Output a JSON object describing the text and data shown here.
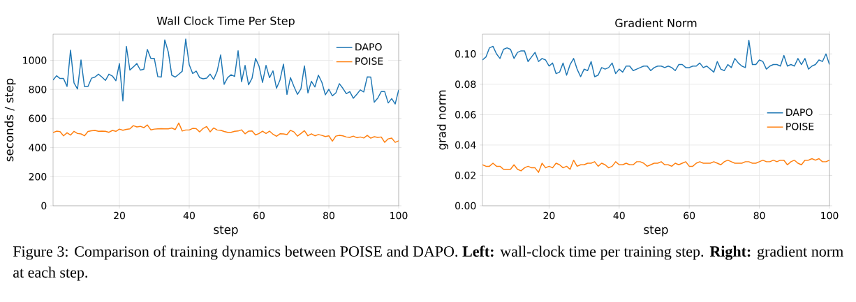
{
  "chart_data": [
    {
      "type": "line",
      "title": "Wall Clock Time Per Step",
      "xlabel": "step",
      "ylabel": "seconds / step",
      "x": [
        1,
        2,
        3,
        4,
        5,
        6,
        7,
        8,
        9,
        10,
        11,
        12,
        13,
        14,
        15,
        16,
        17,
        18,
        19,
        20,
        21,
        22,
        23,
        24,
        25,
        26,
        27,
        28,
        29,
        30,
        31,
        32,
        33,
        34,
        35,
        36,
        37,
        38,
        39,
        40,
        41,
        42,
        43,
        44,
        45,
        46,
        47,
        48,
        49,
        50,
        51,
        52,
        53,
        54,
        55,
        56,
        57,
        58,
        59,
        60,
        61,
        62,
        63,
        64,
        65,
        66,
        67,
        68,
        69,
        70,
        71,
        72,
        73,
        74,
        75,
        76,
        77,
        78,
        79,
        80,
        81,
        82,
        83,
        84,
        85,
        86,
        87,
        88,
        89,
        90,
        91,
        92,
        93,
        94,
        95,
        96,
        97,
        98,
        99,
        100
      ],
      "series": [
        {
          "name": "DAPO",
          "color": "#1f77b4",
          "values": [
            865,
            894,
            875,
            875,
            820,
            1070,
            845,
            803,
            1003,
            820,
            820,
            877,
            885,
            905,
            885,
            862,
            905,
            892,
            860,
            978,
            721,
            1096,
            933,
            955,
            978,
            933,
            939,
            1075,
            1013,
            1013,
            888,
            885,
            1141,
            1058,
            898,
            885,
            904,
            925,
            1146,
            970,
            909,
            926,
            881,
            873,
            878,
            905,
            869,
            925,
            1037,
            835,
            881,
            901,
            889,
            1066,
            853,
            965,
            832,
            877,
            1013,
            960,
            848,
            965,
            881,
            928,
            808,
            865,
            974,
            766,
            881,
            820,
            766,
            804,
            962,
            776,
            856,
            817,
            898,
            849,
            763,
            801,
            756,
            776,
            840,
            808,
            771,
            785,
            739,
            766,
            797,
            783,
            886,
            885,
            712,
            740,
            785,
            785,
            707,
            737,
            700,
            797
          ]
        },
        {
          "name": "POISE",
          "color": "#ff7f0e",
          "values": [
            503,
            513,
            510,
            481,
            502,
            486,
            512,
            497,
            494,
            481,
            511,
            516,
            518,
            512,
            513,
            512,
            505,
            518,
            512,
            527,
            519,
            525,
            529,
            551,
            542,
            546,
            537,
            556,
            522,
            527,
            529,
            530,
            529,
            529,
            535,
            524,
            569,
            514,
            521,
            521,
            532,
            530,
            508,
            532,
            545,
            508,
            535,
            521,
            519,
            511,
            505,
            505,
            512,
            514,
            522,
            495,
            513,
            514,
            487,
            497,
            513,
            497,
            513,
            492,
            478,
            495,
            494,
            489,
            519,
            508,
            479,
            497,
            516,
            481,
            495,
            481,
            490,
            484,
            476,
            481,
            444,
            479,
            484,
            481,
            473,
            470,
            479,
            468,
            473,
            466,
            484,
            465,
            475,
            470,
            473,
            436,
            460,
            465,
            436,
            447
          ]
        }
      ],
      "xlim": [
        1,
        100
      ],
      "xticks": [
        20,
        40,
        60,
        80,
        100
      ],
      "ylim": [
        0,
        1180
      ],
      "yticks": [
        0,
        200,
        400,
        600,
        800,
        1000
      ],
      "grid": true,
      "legend": "top right",
      "marker": "none",
      "annotations": [
        "Figure 3: Comparison of training dynamics between POISE and DAPO. **Left:** wall-clock time per training step. **Right:** gradient norm at each step."
      ]
    },
    {
      "type": "line",
      "title": "Gradient Norm",
      "xlabel": "step",
      "ylabel": "grad norm",
      "x": [
        1,
        2,
        3,
        4,
        5,
        6,
        7,
        8,
        9,
        10,
        11,
        12,
        13,
        14,
        15,
        16,
        17,
        18,
        19,
        20,
        21,
        22,
        23,
        24,
        25,
        26,
        27,
        28,
        29,
        30,
        31,
        32,
        33,
        34,
        35,
        36,
        37,
        38,
        39,
        40,
        41,
        42,
        43,
        44,
        45,
        46,
        47,
        48,
        49,
        50,
        51,
        52,
        53,
        54,
        55,
        56,
        57,
        58,
        59,
        60,
        61,
        62,
        63,
        64,
        65,
        66,
        67,
        68,
        69,
        70,
        71,
        72,
        73,
        74,
        75,
        76,
        77,
        78,
        79,
        80,
        81,
        82,
        83,
        84,
        85,
        86,
        87,
        88,
        89,
        90,
        91,
        92,
        93,
        94,
        95,
        96,
        97,
        98,
        99,
        100
      ],
      "series": [
        {
          "name": "DAPO",
          "color": "#1f77b4",
          "values": [
            0.096,
            0.098,
            0.104,
            0.105,
            0.1,
            0.097,
            0.103,
            0.104,
            0.103,
            0.097,
            0.101,
            0.102,
            0.102,
            0.095,
            0.098,
            0.101,
            0.095,
            0.097,
            0.096,
            0.092,
            0.094,
            0.087,
            0.088,
            0.094,
            0.086,
            0.093,
            0.097,
            0.09,
            0.085,
            0.09,
            0.089,
            0.095,
            0.085,
            0.086,
            0.091,
            0.09,
            0.091,
            0.094,
            0.087,
            0.09,
            0.088,
            0.092,
            0.092,
            0.089,
            0.09,
            0.091,
            0.092,
            0.092,
            0.089,
            0.091,
            0.092,
            0.092,
            0.091,
            0.092,
            0.091,
            0.089,
            0.093,
            0.093,
            0.091,
            0.091,
            0.092,
            0.092,
            0.094,
            0.091,
            0.092,
            0.09,
            0.088,
            0.095,
            0.09,
            0.089,
            0.093,
            0.091,
            0.097,
            0.094,
            0.092,
            0.091,
            0.109,
            0.093,
            0.093,
            0.096,
            0.095,
            0.09,
            0.092,
            0.093,
            0.093,
            0.092,
            0.099,
            0.092,
            0.093,
            0.092,
            0.097,
            0.093,
            0.097,
            0.09,
            0.092,
            0.093,
            0.096,
            0.095,
            0.1,
            0.093
          ]
        },
        {
          "name": "POISE",
          "color": "#ff7f0e",
          "values": [
            0.027,
            0.026,
            0.026,
            0.028,
            0.026,
            0.026,
            0.024,
            0.024,
            0.024,
            0.027,
            0.024,
            0.023,
            0.025,
            0.026,
            0.025,
            0.025,
            0.022,
            0.028,
            0.025,
            0.026,
            0.025,
            0.028,
            0.027,
            0.025,
            0.026,
            0.024,
            0.03,
            0.026,
            0.027,
            0.027,
            0.028,
            0.028,
            0.029,
            0.026,
            0.028,
            0.027,
            0.025,
            0.026,
            0.029,
            0.027,
            0.027,
            0.028,
            0.027,
            0.027,
            0.029,
            0.029,
            0.028,
            0.026,
            0.027,
            0.028,
            0.028,
            0.029,
            0.027,
            0.027,
            0.026,
            0.028,
            0.027,
            0.028,
            0.029,
            0.026,
            0.026,
            0.028,
            0.029,
            0.028,
            0.028,
            0.028,
            0.029,
            0.028,
            0.027,
            0.029,
            0.03,
            0.029,
            0.028,
            0.028,
            0.028,
            0.029,
            0.029,
            0.028,
            0.028,
            0.029,
            0.03,
            0.029,
            0.029,
            0.03,
            0.029,
            0.03,
            0.03,
            0.027,
            0.029,
            0.03,
            0.028,
            0.027,
            0.03,
            0.03,
            0.031,
            0.03,
            0.031,
            0.029,
            0.029,
            0.03
          ]
        }
      ],
      "xlim": [
        1,
        100
      ],
      "xticks": [
        20,
        40,
        60,
        80,
        100
      ],
      "ylim": [
        0,
        0.113
      ],
      "yticks": [
        {
          "value": 0,
          "label": "0.00"
        },
        0.02,
        0.04,
        0.06,
        0.08,
        {
          "value": 0.1,
          "label": "0.10"
        }
      ],
      "grid": true,
      "legend": "right",
      "marker": "none"
    }
  ]
}
